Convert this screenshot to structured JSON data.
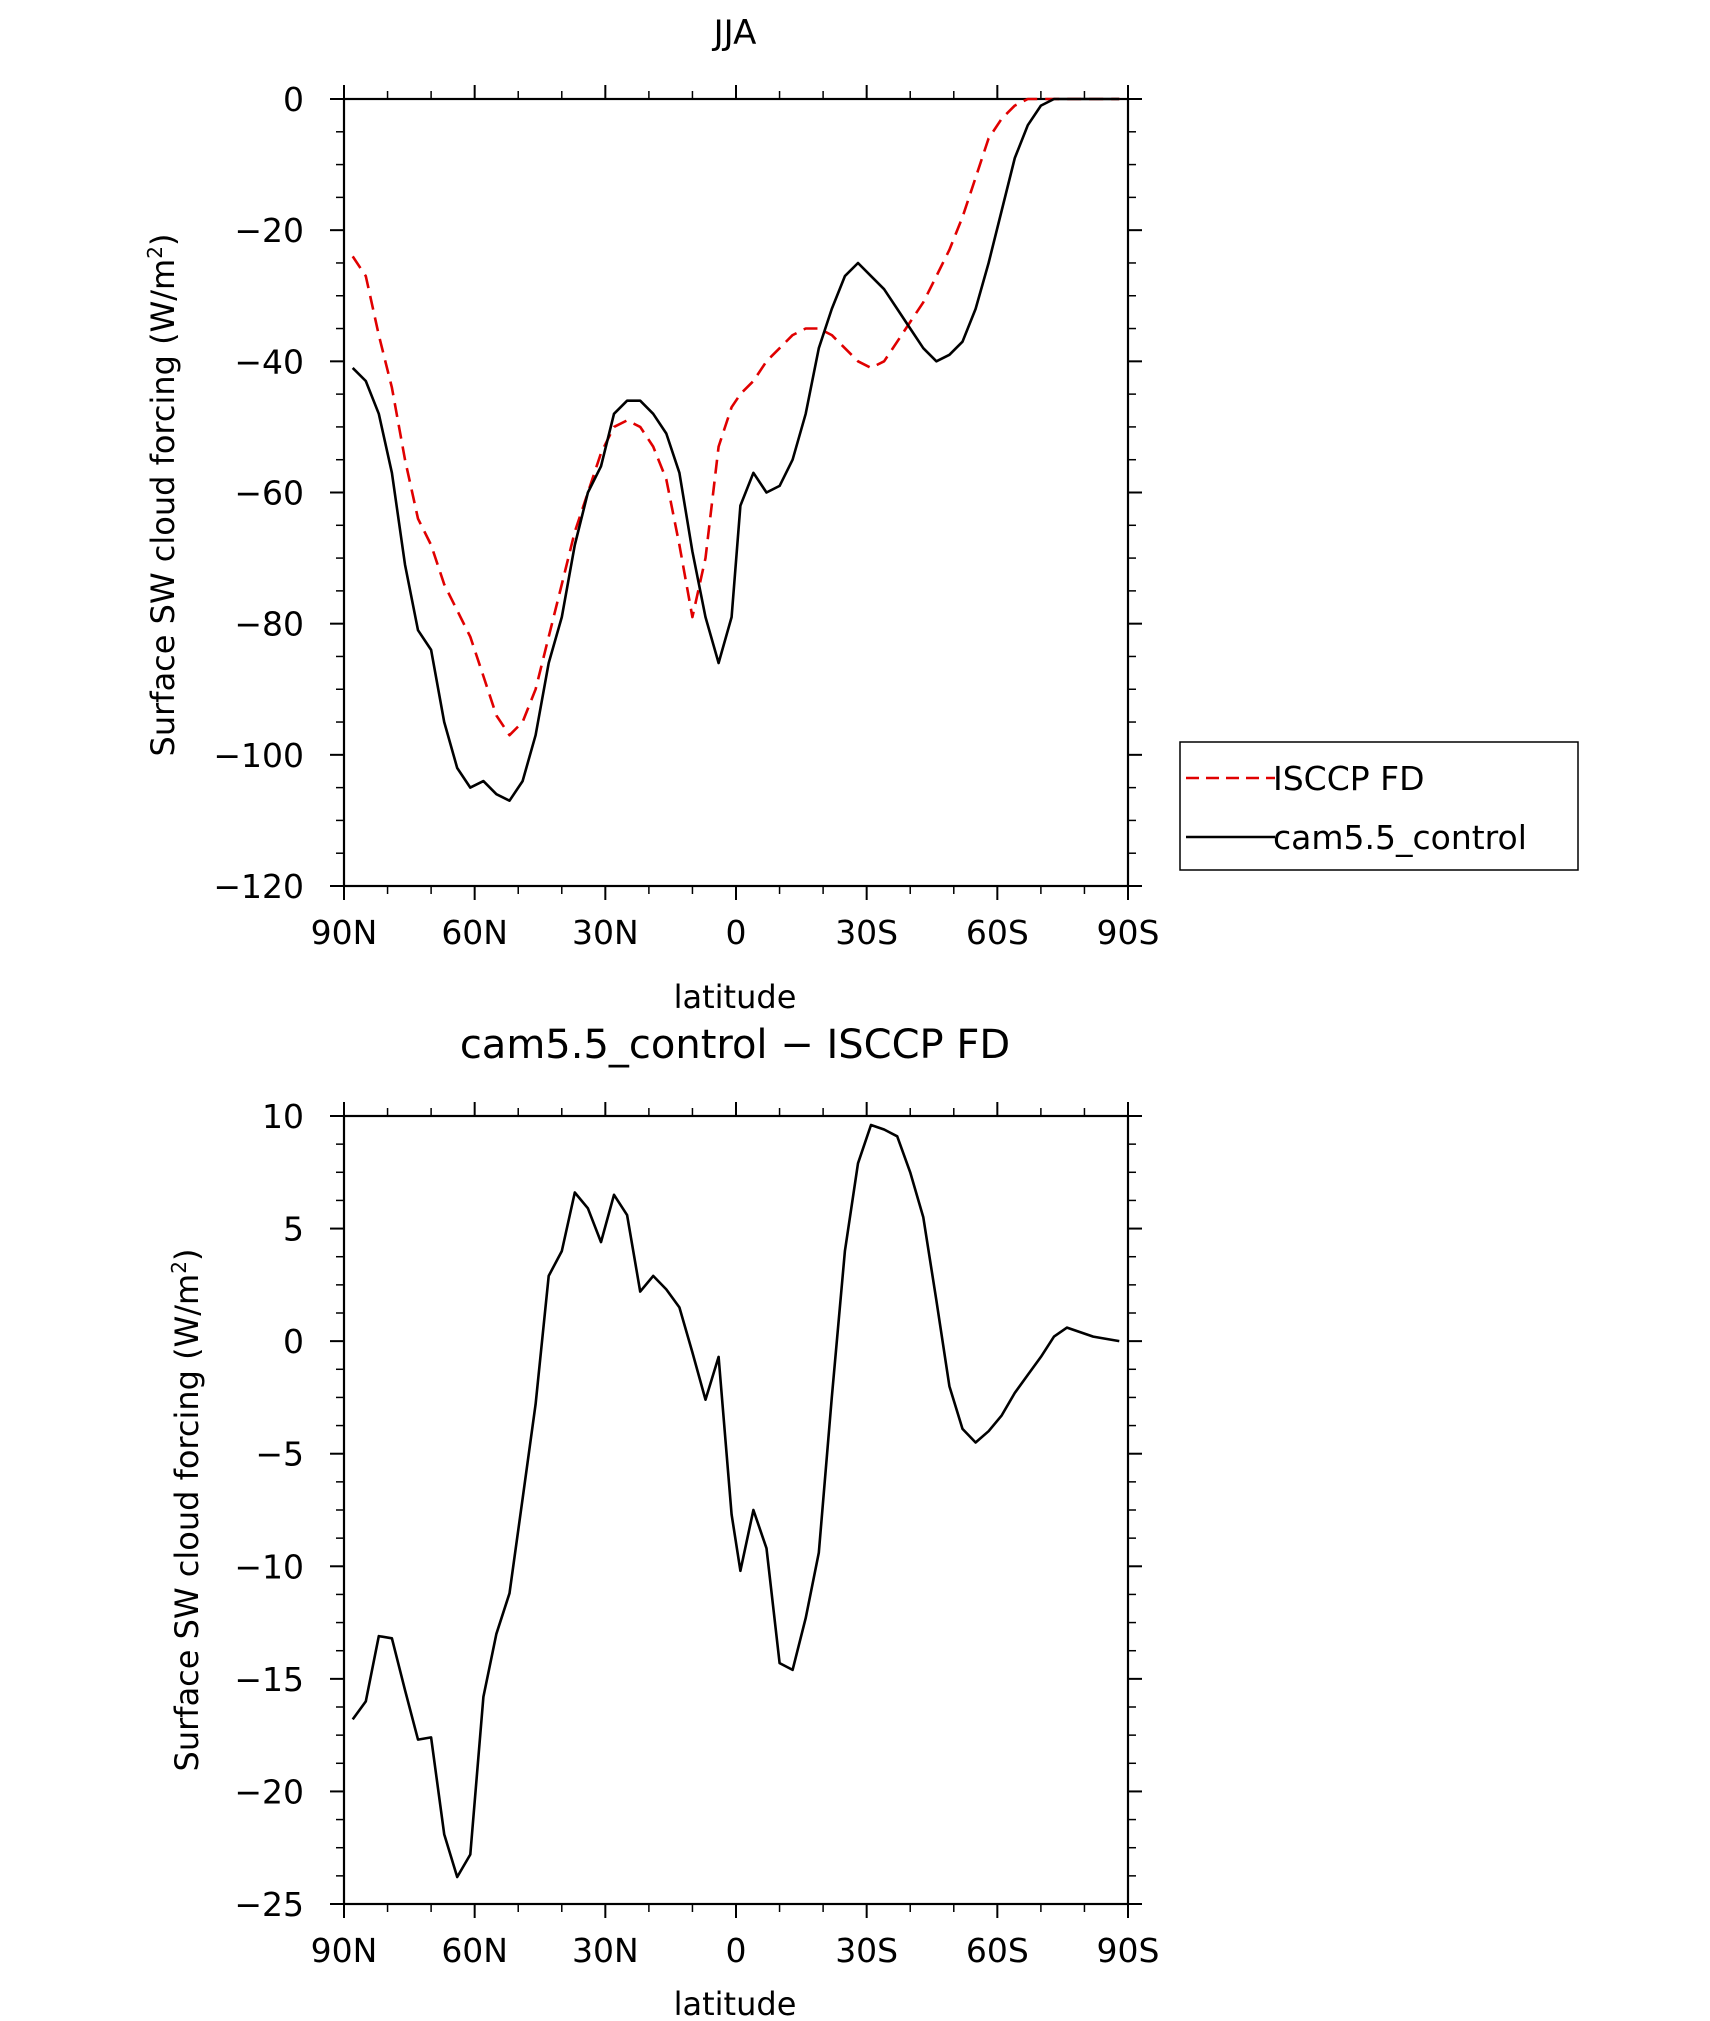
{
  "chart_data": [
    {
      "type": "line",
      "title": "JJA",
      "xlabel": "latitude",
      "ylabel": "Surface SW cloud forcing (W/m²)",
      "ylabel_main": "Surface SW cloud forcing (W/m",
      "ylabel_sup": "2",
      "ylabel_tail": ")",
      "xlim": [
        90,
        -90
      ],
      "ylim": [
        -120,
        0
      ],
      "x_ticks": [
        90,
        60,
        30,
        0,
        -30,
        -60,
        -90
      ],
      "x_tick_labels": [
        "90N",
        "60N",
        "30N",
        "0",
        "30S",
        "60S",
        "90S"
      ],
      "y_ticks": [
        0,
        -20,
        -40,
        -60,
        -80,
        -100,
        -120
      ],
      "y_tick_labels": [
        "0",
        "−20",
        "−40",
        "−60",
        "−80",
        "−100",
        "−120"
      ],
      "legend_position": "right",
      "series": [
        {
          "name": "ISCCP FD",
          "color": "#e00000",
          "dash": "dashed",
          "x": [
            88,
            85,
            82,
            79,
            76,
            73,
            70,
            67,
            64,
            61,
            58,
            55,
            52,
            49,
            46,
            43,
            40,
            37,
            34,
            31,
            28,
            25,
            22,
            19,
            16,
            13,
            10,
            7,
            4,
            1,
            -1,
            -4,
            -7,
            -10,
            -13,
            -16,
            -19,
            -22,
            -25,
            -28,
            -31,
            -34,
            -37,
            -40,
            -43,
            -46,
            -49,
            -52,
            -55,
            -58,
            -61,
            -64,
            -67,
            -70,
            -73,
            -76,
            -79,
            -82,
            -85,
            -88
          ],
          "y": [
            -24,
            -27,
            -36,
            -44,
            -55,
            -64,
            -68,
            -74,
            -78,
            -82,
            -88,
            -94,
            -97,
            -95,
            -90,
            -82,
            -74,
            -66,
            -60,
            -54,
            -50,
            -49,
            -50,
            -53,
            -58,
            -68,
            -79,
            -70,
            -53,
            -47,
            -45,
            -43,
            -40,
            -38,
            -36,
            -35,
            -35,
            -36,
            -38,
            -40,
            -41,
            -40,
            -37,
            -34,
            -31,
            -27,
            -23,
            -18,
            -12,
            -6,
            -3,
            -1,
            0,
            0,
            0,
            0,
            0,
            0,
            0,
            0
          ]
        },
        {
          "name": "cam5.5_control",
          "color": "#000000",
          "dash": "solid",
          "x": [
            88,
            85,
            82,
            79,
            76,
            73,
            70,
            67,
            64,
            61,
            58,
            55,
            52,
            49,
            46,
            43,
            40,
            37,
            34,
            31,
            28,
            25,
            22,
            19,
            16,
            13,
            10,
            7,
            4,
            1,
            -1,
            -4,
            -7,
            -10,
            -13,
            -16,
            -19,
            -22,
            -25,
            -28,
            -31,
            -34,
            -37,
            -40,
            -43,
            -46,
            -49,
            -52,
            -55,
            -58,
            -61,
            -64,
            -67,
            -70,
            -73,
            -76,
            -79,
            -82,
            -85,
            -88
          ],
          "y": [
            -41,
            -43,
            -48,
            -57,
            -71,
            -81,
            -84,
            -95,
            -102,
            -105,
            -104,
            -106,
            -107,
            -104,
            -97,
            -86,
            -79,
            -68,
            -60,
            -56,
            -48,
            -46,
            -46,
            -48,
            -51,
            -57,
            -69,
            -79,
            -86,
            -79,
            -62,
            -57,
            -60,
            -59,
            -55,
            -48,
            -38,
            -32,
            -27,
            -25,
            -27,
            -29,
            -32,
            -35,
            -38,
            -40,
            -39,
            -37,
            -32,
            -25,
            -17,
            -9,
            -4,
            -1,
            0,
            0,
            0,
            0,
            0,
            0
          ]
        }
      ]
    },
    {
      "type": "line",
      "title": "cam5.5_control − ISCCP FD",
      "xlabel": "latitude",
      "ylabel": "Surface SW cloud forcing (W/m²)",
      "ylabel_main": "Surface SW cloud forcing (W/m",
      "ylabel_sup": "2",
      "ylabel_tail": ")",
      "xlim": [
        90,
        -90
      ],
      "ylim": [
        -25,
        10
      ],
      "x_ticks": [
        90,
        60,
        30,
        0,
        -30,
        -60,
        -90
      ],
      "x_tick_labels": [
        "90N",
        "60N",
        "30N",
        "0",
        "30S",
        "60S",
        "90S"
      ],
      "y_ticks": [
        10,
        5,
        0,
        -5,
        -10,
        -15,
        -20,
        -25
      ],
      "y_tick_labels": [
        "10",
        "5",
        "0",
        "−5",
        "−10",
        "−15",
        "−20",
        "−25"
      ],
      "series": [
        {
          "color": "#000000",
          "dash": "solid",
          "x": [
            88,
            85,
            82,
            79,
            76,
            73,
            70,
            67,
            64,
            61,
            58,
            55,
            52,
            49,
            46,
            43,
            40,
            37,
            34,
            31,
            28,
            25,
            22,
            19,
            16,
            13,
            10,
            7,
            4,
            1,
            -1,
            -4,
            -7,
            -10,
            -13,
            -16,
            -19,
            -22,
            -25,
            -28,
            -31,
            -34,
            -37,
            -40,
            -43,
            -46,
            -49,
            -52,
            -55,
            -58,
            -61,
            -64,
            -67,
            -70,
            -73,
            -76,
            -79,
            -82,
            -85,
            -88
          ],
          "y": [
            -16.8,
            -16,
            -13.1,
            -13.2,
            -15.5,
            -17.7,
            -17.6,
            -21.9,
            -23.8,
            -22.8,
            -15.8,
            -13,
            -11.2,
            -7,
            -2.8,
            2.9,
            4,
            6.6,
            5.9,
            4.4,
            6.5,
            5.6,
            2.2,
            2.9,
            2.3,
            1.5,
            -0.5,
            -2.6,
            -0.7,
            -7.7,
            -10.2,
            -7.5,
            -9.2,
            -14.3,
            -14.6,
            -12.3,
            -9.4,
            -2.5,
            4,
            7.9,
            9.6,
            9.4,
            9.1,
            7.5,
            5.5,
            1.8,
            -2,
            -3.9,
            -4.5,
            -4,
            -3.3,
            -2.3,
            -1.5,
            -0.7,
            0.2,
            0.6,
            0.4,
            0.2,
            0.1,
            0
          ]
        }
      ]
    }
  ]
}
